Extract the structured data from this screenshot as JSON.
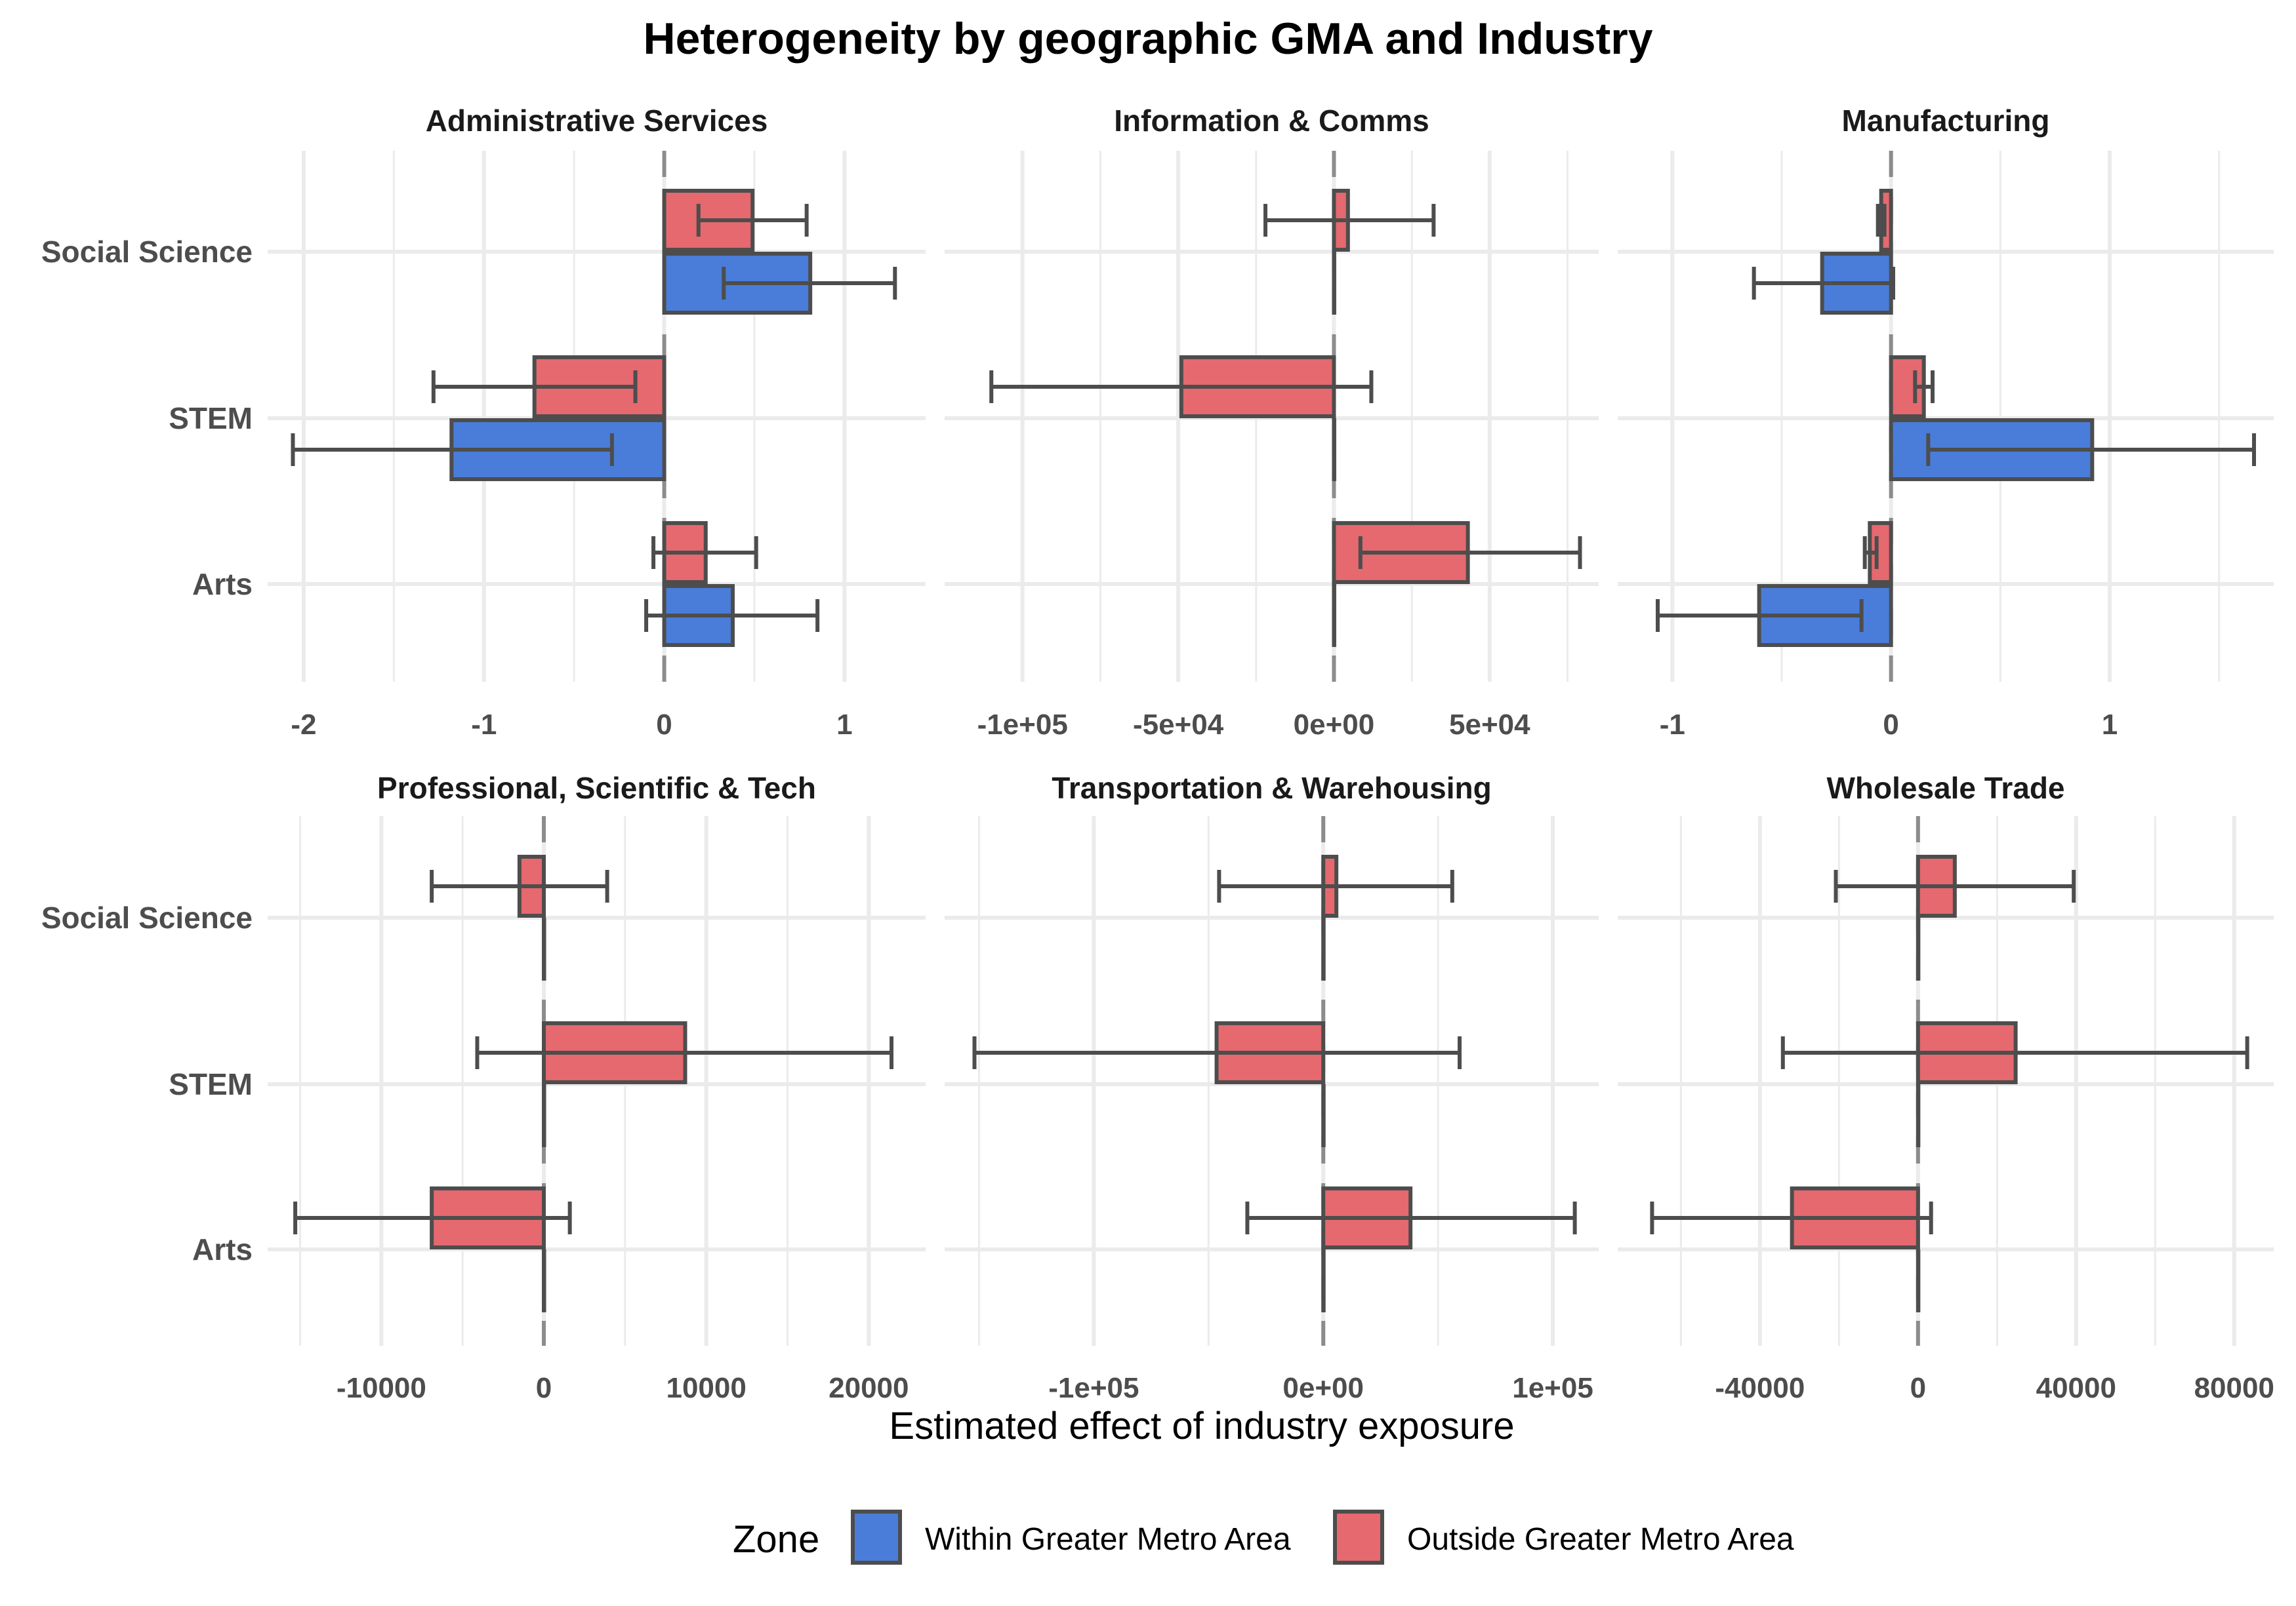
{
  "chart_data": {
    "type": "bar",
    "orientation": "horizontal",
    "title": "Heterogeneity by geographic GMA and Industry",
    "xlabel": "Estimated effect of industry exposure",
    "ylabel": "",
    "grid": true,
    "reference_line": {
      "x": 0,
      "style": "dashed"
    },
    "categories": [
      "Social Science",
      "STEM",
      "Arts"
    ],
    "legend": {
      "title": "Zone",
      "position": "bottom",
      "entries": [
        {
          "key": "within",
          "label": "Within Greater Metro Area",
          "color": "#4a7dd9"
        },
        {
          "key": "outside",
          "label": "Outside Greater Metro Area",
          "color": "#e5696e"
        }
      ]
    },
    "bar_border_color": "#4d4d4d",
    "panels": [
      {
        "title": "Administrative Services",
        "xlim": [
          -2.2,
          1.45
        ],
        "ticks": [
          -2,
          -1,
          0,
          1
        ],
        "tick_labels": [
          "-2",
          "-1",
          "0",
          "1"
        ],
        "minor_ticks": [
          -1.5,
          -0.5,
          0.5
        ],
        "series": [
          {
            "key": "outside",
            "values": [
              0.49,
              -0.72,
              0.23
            ],
            "lower": [
              0.19,
              -1.28,
              -0.06
            ],
            "upper": [
              0.79,
              -0.16,
              0.51
            ]
          },
          {
            "key": "within",
            "values": [
              0.81,
              -1.18,
              0.38
            ],
            "lower": [
              0.33,
              -2.06,
              -0.1
            ],
            "upper": [
              1.28,
              -0.29,
              0.85
            ]
          }
        ]
      },
      {
        "title": "Information & Comms",
        "xlim": [
          -125000,
          85000
        ],
        "ticks": [
          -100000,
          -50000,
          0,
          50000
        ],
        "tick_labels": [
          "-1e+05",
          "-5e+04",
          "0e+00",
          "5e+04"
        ],
        "minor_ticks": [
          -75000,
          -25000,
          25000,
          75000
        ],
        "series": [
          {
            "key": "outside",
            "values": [
              4500,
              -49000,
              43000
            ],
            "lower": [
              -22000,
              -110000,
              8500
            ],
            "upper": [
              32000,
              12000,
              79000
            ]
          },
          {
            "key": "within",
            "values": [
              0,
              0,
              0
            ],
            "lower": [
              null,
              null,
              null
            ],
            "upper": [
              null,
              null,
              null
            ]
          }
        ]
      },
      {
        "title": "Manufacturing",
        "xlim": [
          -1.25,
          1.75
        ],
        "ticks": [
          -1,
          0,
          1
        ],
        "tick_labels": [
          "-1",
          "0",
          "1"
        ],
        "minor_ticks": [
          -0.5,
          0.5,
          1.5
        ],
        "series": [
          {
            "key": "outside",
            "values": [
              -0.045,
              0.15,
              -0.097
            ],
            "lower": [
              -0.06,
              0.11,
              -0.12
            ],
            "upper": [
              -0.03,
              0.19,
              -0.066
            ]
          },
          {
            "key": "within",
            "values": [
              -0.315,
              0.92,
              -0.603
            ],
            "lower": [
              -0.627,
              0.17,
              -1.067
            ],
            "upper": [
              0.01,
              1.66,
              -0.135
            ]
          }
        ]
      },
      {
        "title": "Professional, Scientific & Tech",
        "xlim": [
          -17000,
          23500
        ],
        "ticks": [
          -10000,
          0,
          10000,
          20000
        ],
        "tick_labels": [
          "-10000",
          "0",
          "10000",
          "20000"
        ],
        "minor_ticks": [
          -15000,
          -5000,
          5000,
          15000
        ],
        "series": [
          {
            "key": "outside",
            "values": [
              -1500,
              8700,
              -6900
            ],
            "lower": [
              -6900,
              -4100,
              -15300
            ],
            "upper": [
              3900,
              21400,
              1600
            ]
          },
          {
            "key": "within",
            "values": [
              0,
              0,
              0
            ],
            "lower": [
              null,
              null,
              null
            ],
            "upper": [
              null,
              null,
              null
            ]
          }
        ]
      },
      {
        "title": "Transportation & Warehousing",
        "xlim": [
          -165000,
          120000
        ],
        "ticks": [
          -100000,
          0,
          100000
        ],
        "tick_labels": [
          "-1e+05",
          "0e+00",
          "1e+05"
        ],
        "minor_ticks": [
          -150000,
          -50000,
          50000
        ],
        "series": [
          {
            "key": "outside",
            "values": [
              5700,
              -46500,
              38000
            ],
            "lower": [
              -45400,
              -152000,
              -33100
            ],
            "upper": [
              56200,
              59400,
              109600
            ]
          },
          {
            "key": "within",
            "values": [
              0,
              0,
              0
            ],
            "lower": [
              null,
              null,
              null
            ],
            "upper": [
              null,
              null,
              null
            ]
          }
        ]
      },
      {
        "title": "Wholesale Trade",
        "xlim": [
          -76000,
          90000
        ],
        "ticks": [
          -40000,
          0,
          40000,
          80000
        ],
        "tick_labels": [
          "-40000",
          "0",
          "40000",
          "80000"
        ],
        "minor_ticks": [
          -60000,
          -20000,
          20000,
          60000
        ],
        "series": [
          {
            "key": "outside",
            "values": [
              9300,
              24700,
              -31900
            ],
            "lower": [
              -20800,
              -34200,
              -67300
            ],
            "upper": [
              39400,
              83300,
              3300
            ]
          },
          {
            "key": "within",
            "values": [
              0,
              0,
              0
            ],
            "lower": [
              null,
              null,
              null
            ],
            "upper": [
              null,
              null,
              null
            ]
          }
        ]
      }
    ]
  }
}
